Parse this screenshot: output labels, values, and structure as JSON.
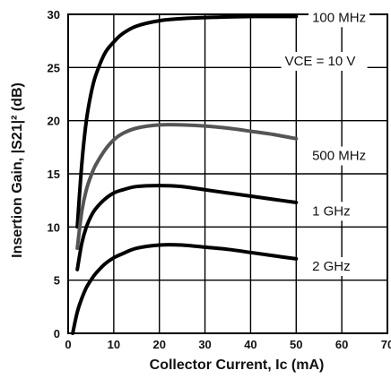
{
  "chart_data": {
    "type": "line",
    "xlabel": "Collector Current, Ic (mA)",
    "ylabel": "Insertion Gain, |S21|² (dB)",
    "xlim": [
      0,
      70
    ],
    "ylim": [
      0,
      30
    ],
    "x_ticks": [
      "0",
      "10",
      "20",
      "30",
      "40",
      "50",
      "60",
      "70"
    ],
    "y_ticks": [
      "0",
      "5",
      "10",
      "15",
      "20",
      "25",
      "30"
    ],
    "grid": true,
    "condition_label": "VCE = 10 V",
    "series": [
      {
        "name": "100 MHz",
        "color": "#000000",
        "x": [
          2,
          3,
          4,
          5,
          6,
          8,
          10,
          12,
          15,
          20,
          25,
          30,
          40,
          50
        ],
        "y": [
          10,
          16,
          20,
          22.5,
          24.2,
          26.3,
          27.4,
          28.2,
          28.9,
          29.4,
          29.6,
          29.7,
          29.8,
          29.8
        ]
      },
      {
        "name": "500 MHz",
        "color": "#555555",
        "x": [
          2,
          3,
          4,
          5,
          6,
          8,
          10,
          12,
          15,
          20,
          25,
          30,
          35,
          40,
          45,
          50
        ],
        "y": [
          8,
          11.5,
          13.5,
          14.8,
          15.8,
          17.2,
          18.2,
          18.8,
          19.3,
          19.6,
          19.6,
          19.5,
          19.3,
          19.0,
          18.7,
          18.3
        ]
      },
      {
        "name": "1 GHz",
        "color": "#000000",
        "x": [
          2,
          3,
          4,
          5,
          6,
          8,
          10,
          12,
          15,
          20,
          25,
          30,
          35,
          40,
          45,
          50
        ],
        "y": [
          6,
          8.5,
          10,
          11,
          11.7,
          12.6,
          13.2,
          13.5,
          13.8,
          13.9,
          13.8,
          13.5,
          13.2,
          12.9,
          12.6,
          12.3
        ]
      },
      {
        "name": "2 GHz",
        "color": "#000000",
        "x": [
          1,
          2,
          3,
          4,
          5,
          6,
          8,
          10,
          12,
          15,
          20,
          25,
          30,
          35,
          40,
          45,
          50
        ],
        "y": [
          0,
          2,
          3.3,
          4.3,
          5.0,
          5.6,
          6.5,
          7.1,
          7.5,
          8.0,
          8.3,
          8.3,
          8.1,
          7.9,
          7.6,
          7.3,
          7.0
        ]
      }
    ]
  }
}
